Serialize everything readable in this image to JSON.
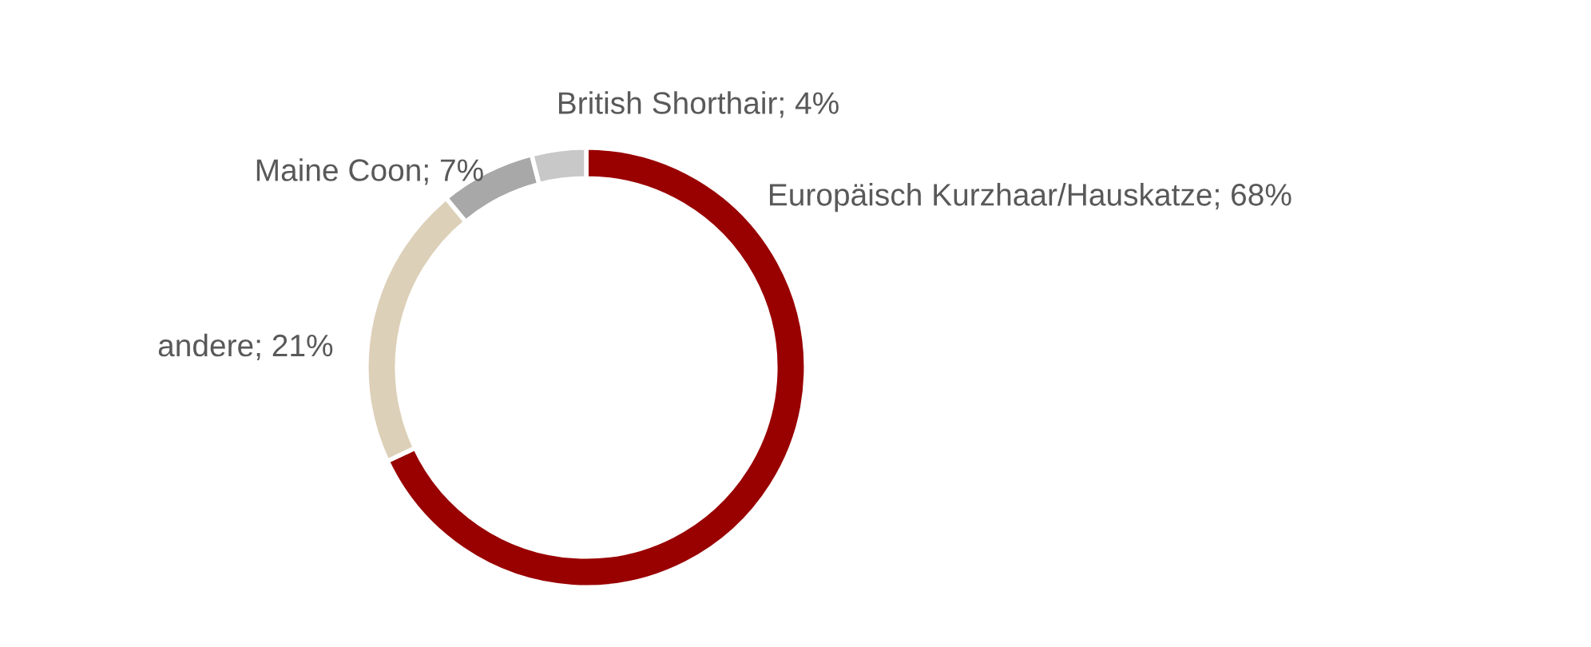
{
  "chart_data": {
    "type": "donut",
    "categories": [
      "Europäisch Kurzhaar/Hauskatze",
      "andere",
      "Maine Coon",
      "British Shorthair"
    ],
    "values": [
      68,
      21,
      7,
      4
    ],
    "value_labels": [
      "68%",
      "21%",
      "7%",
      "4%"
    ],
    "colors": [
      "#990000",
      "#ddd0b8",
      "#a8a8a8",
      "#c8c8c8"
    ],
    "legend": false
  }
}
